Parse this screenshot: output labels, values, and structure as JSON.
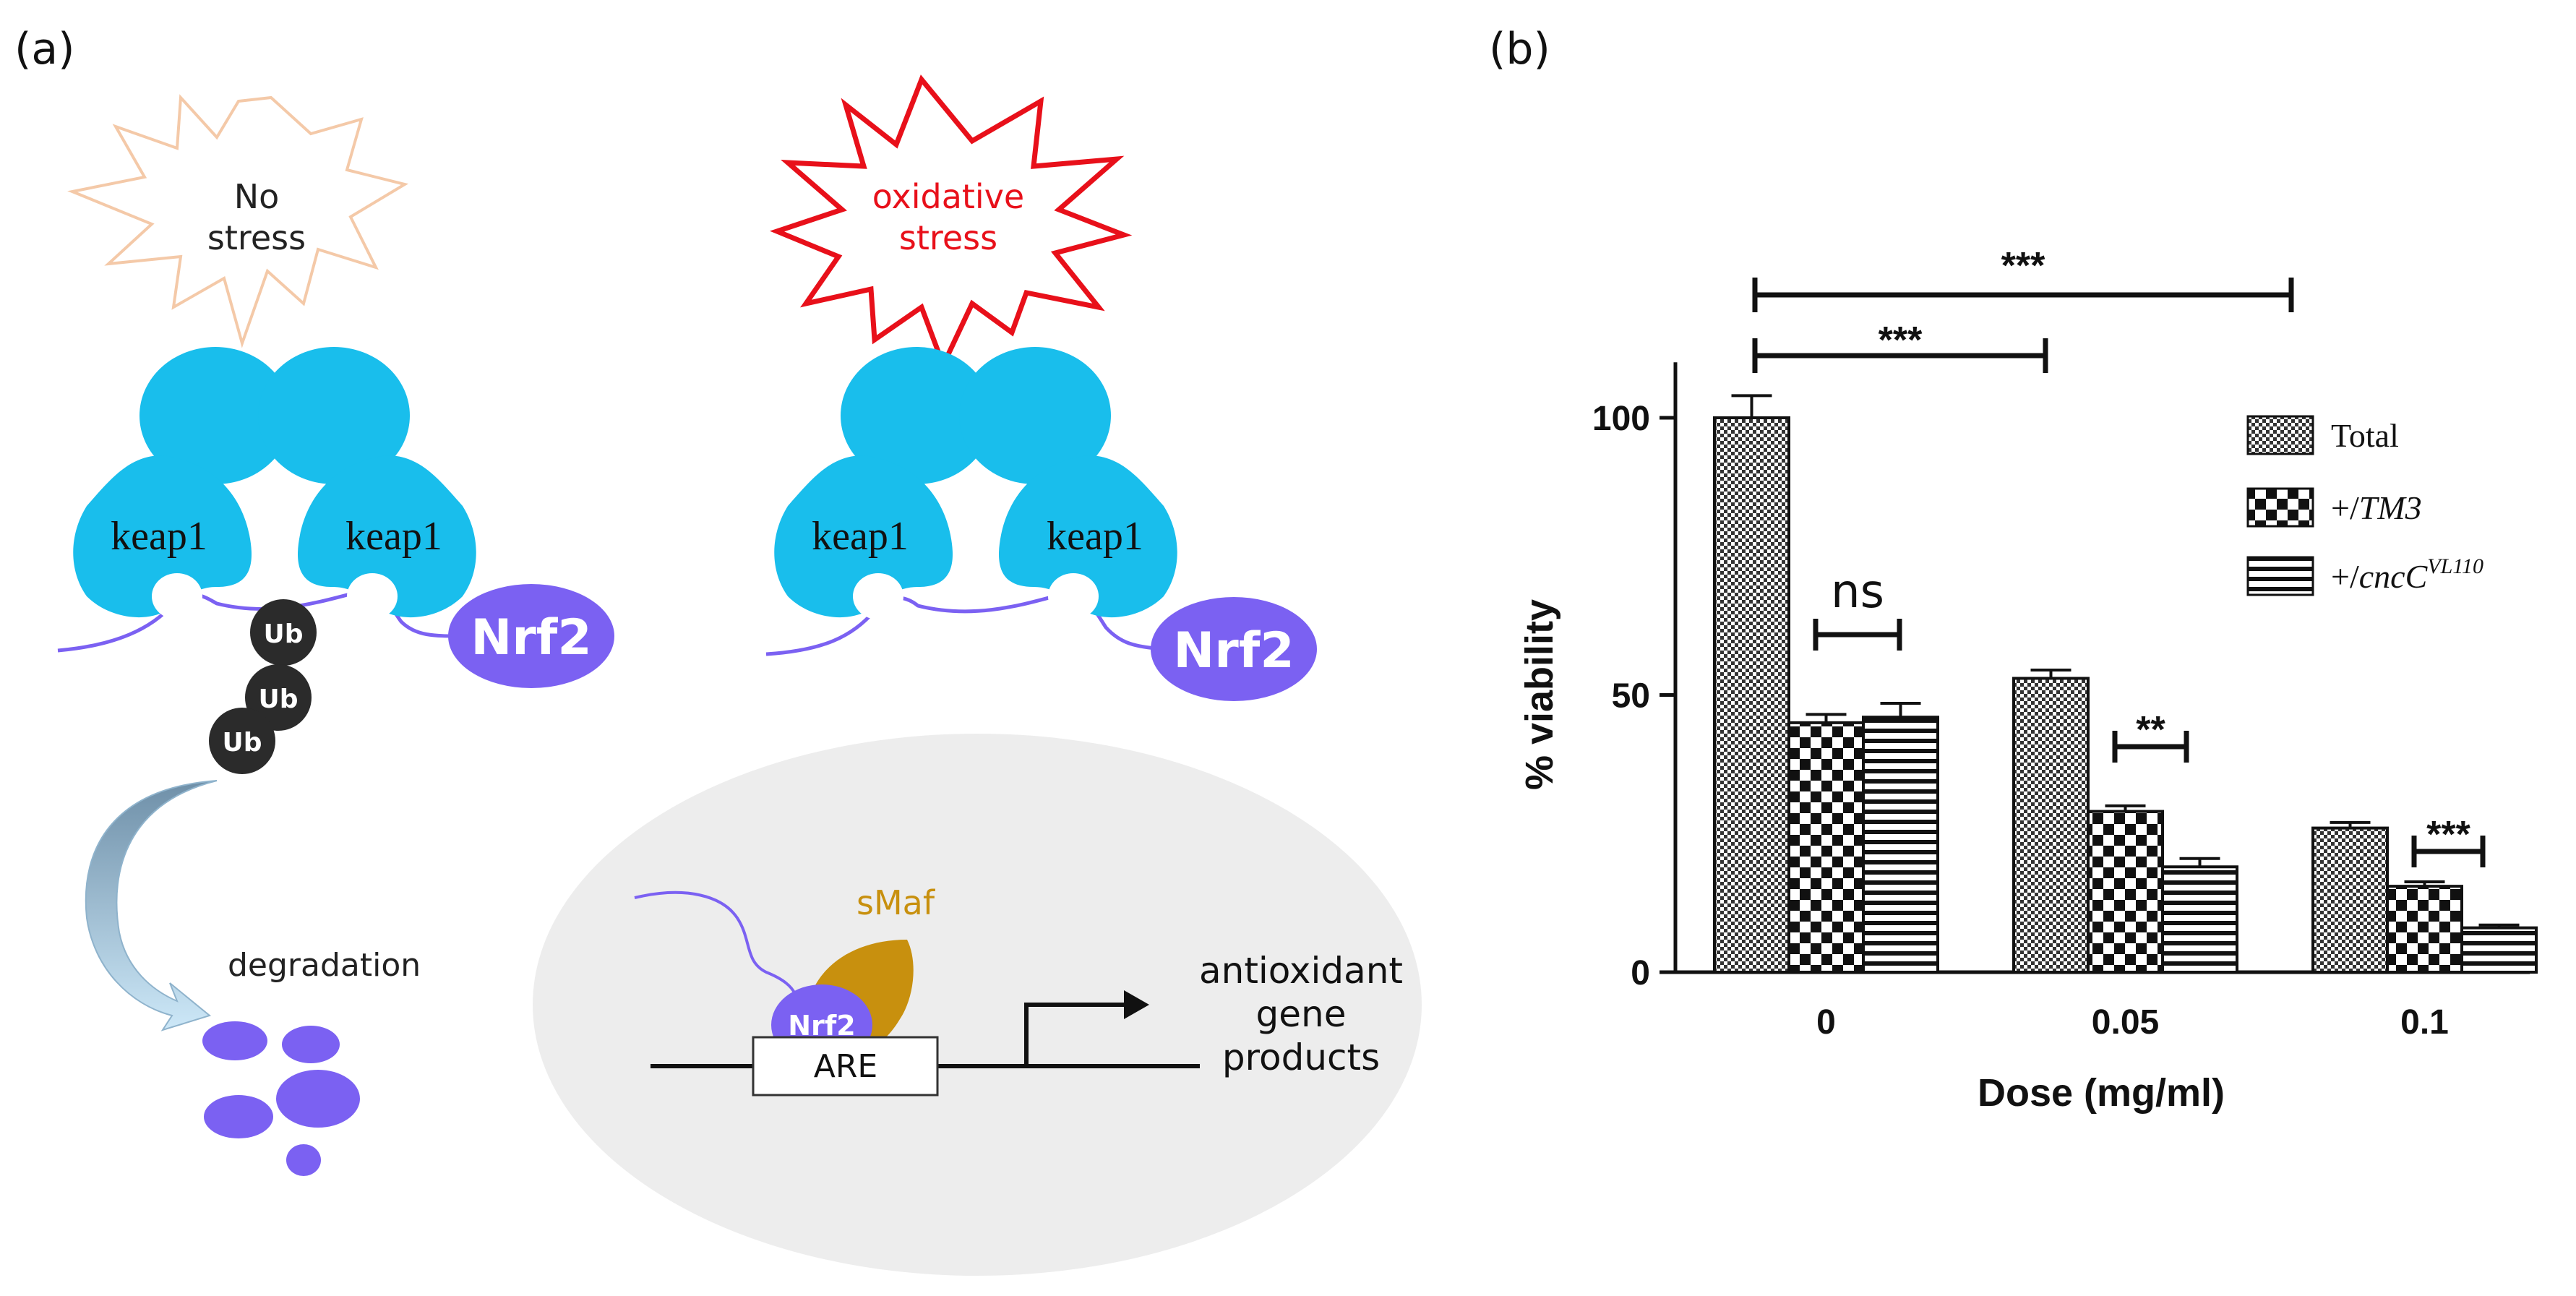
{
  "panel_a": {
    "label": "(a)",
    "no_stress": {
      "line1": "No",
      "line2": "stress"
    },
    "oxidative_stress": {
      "line1": "oxidative",
      "line2": "stress"
    },
    "keap1_label": "keap1",
    "nrf2_label": "Nrf2",
    "ub_label": "Ub",
    "degradation_label": "degradation",
    "smaf_label": "sMaf",
    "are_label": "ARE",
    "antioxidant": {
      "line1": "antioxidant",
      "line2": "gene",
      "line3": "products"
    },
    "colors": {
      "keap1": "#19BEEC",
      "nrf2": "#7B61F2",
      "smaf": "#C8900E",
      "ub": "#2B2B2B",
      "stress_red": "#E8101A",
      "no_stress_outline": "#F4C9A8",
      "nucleus": "#EDEDED"
    }
  },
  "panel_b": {
    "label": "(b)"
  },
  "chart_data": {
    "type": "bar",
    "xlabel": "Dose (mg/ml)",
    "ylabel": "% viability",
    "categories": [
      "0",
      "0.05",
      "0.1"
    ],
    "ylim": [
      0,
      110
    ],
    "yticks": [
      "0",
      "50",
      "100"
    ],
    "series": [
      {
        "name": "Total",
        "pattern": "fine-check",
        "values": [
          100,
          53,
          26
        ],
        "errors": [
          4,
          1.5,
          1
        ]
      },
      {
        "name": "+/TM3",
        "legend_prefix": "+/",
        "legend_main": "TM3",
        "legend_sup": "",
        "pattern": "coarse-check",
        "values": [
          45,
          29,
          15.5
        ],
        "errors": [
          1.5,
          1,
          0.8
        ]
      },
      {
        "name": "+/cncC^VL110",
        "legend_prefix": "+/",
        "legend_main": "cncC",
        "legend_sup": "VL110",
        "pattern": "horizontal-lines",
        "values": [
          46,
          19,
          8
        ],
        "errors": [
          2.5,
          1.5,
          0.5
        ]
      }
    ],
    "significance": [
      {
        "label": "***",
        "between": "Total 0 vs 0.1"
      },
      {
        "label": "***",
        "between": "Total 0 vs 0.05"
      },
      {
        "label": "ns",
        "between": "+/TM3 vs +/cncC at 0"
      },
      {
        "label": "**",
        "between": "+/TM3 vs +/cncC at 0.05"
      },
      {
        "label": "***",
        "between": "+/TM3 vs +/cncC at 0.1"
      }
    ]
  }
}
